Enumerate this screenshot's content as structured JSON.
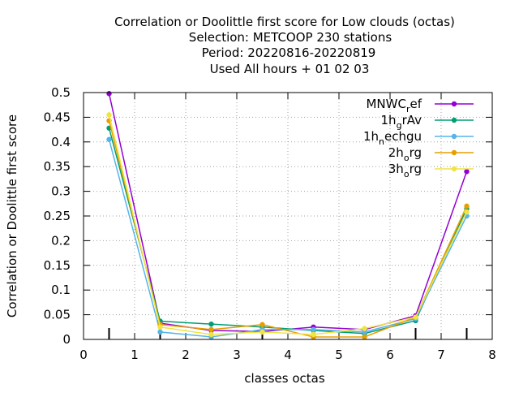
{
  "chart_data": {
    "type": "line",
    "title": [
      "Correlation or Doolittle first score  for Low clouds (octas)",
      "Selection: METCOOP    230 stations",
      "Period: 20220816-20220819",
      "Used  All hours  + 01 02 03"
    ],
    "xlabel": "classes octas",
    "ylabel": "Correlation or Doolittle first score",
    "xlim": [
      0,
      8
    ],
    "ylim": [
      0,
      0.5
    ],
    "xticks": [
      "0",
      "1",
      "2",
      "3",
      "4",
      "5",
      "6",
      "7",
      "8"
    ],
    "yticks": [
      "0",
      "0.05",
      "0.1",
      "0.15",
      "0.2",
      "0.25",
      "0.3",
      "0.35",
      "0.4",
      "0.45",
      "0.5"
    ],
    "grid": true,
    "legend_position": "top-right",
    "x": [
      0.5,
      1.5,
      2.5,
      3.5,
      4.5,
      5.5,
      6.5,
      7.5
    ],
    "series": [
      {
        "name_main": "MNWC",
        "name_sub": "r",
        "name_rest": "ef",
        "color": "#9400d3",
        "values": [
          0.498,
          0.033,
          0.018,
          0.016,
          0.025,
          0.02,
          0.048,
          0.34
        ]
      },
      {
        "name_main": "1h",
        "name_sub": "g",
        "name_rest": "rAv",
        "color": "#009e73",
        "values": [
          0.428,
          0.037,
          0.031,
          0.025,
          0.018,
          0.012,
          0.038,
          0.265
        ]
      },
      {
        "name_main": "1h",
        "name_sub": "n",
        "name_rest": "echgu",
        "color": "#56b4e9",
        "values": [
          0.405,
          0.015,
          0.005,
          0.02,
          0.02,
          0.015,
          0.042,
          0.25
        ]
      },
      {
        "name_main": "2h",
        "name_sub": "o",
        "name_rest": "rg",
        "color": "#e69f00",
        "values": [
          0.443,
          0.03,
          0.02,
          0.03,
          0.005,
          0.005,
          0.045,
          0.27
        ]
      },
      {
        "name_main": "3h",
        "name_sub": "o",
        "name_rest": "rg",
        "color": "#f0e442",
        "values": [
          0.455,
          0.025,
          0.01,
          0.015,
          0.01,
          0.022,
          0.045,
          0.258
        ]
      }
    ]
  }
}
